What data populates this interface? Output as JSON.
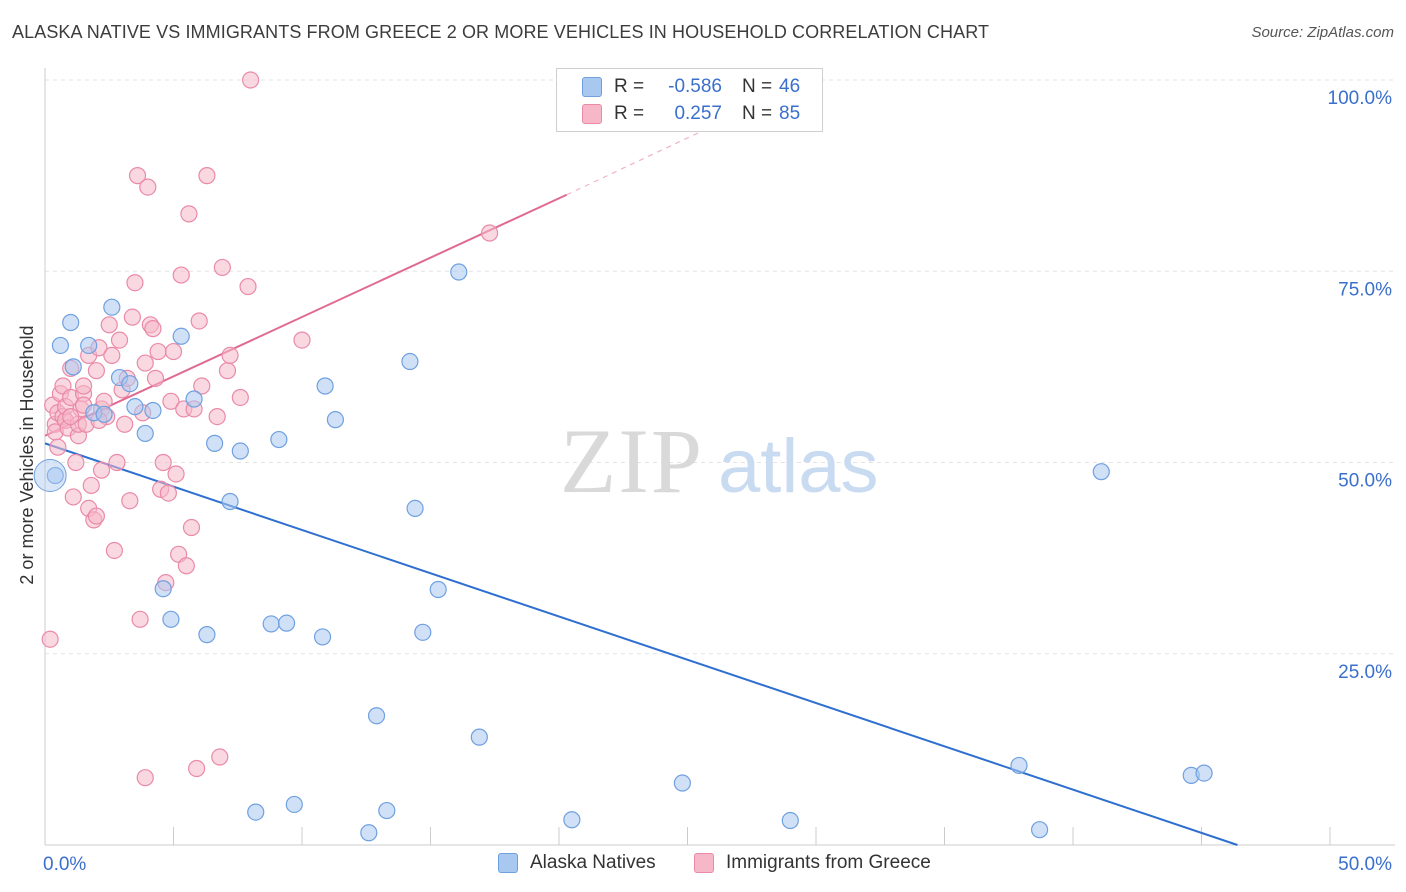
{
  "title": "ALASKA NATIVE VS IMMIGRANTS FROM GREECE 2 OR MORE VEHICLES IN HOUSEHOLD CORRELATION CHART",
  "source": "Source: ZipAtlas.com",
  "watermark": {
    "zip": "ZIP",
    "atlas": "atlas"
  },
  "legend": {
    "rows": [
      {
        "r_label": "R =",
        "r_value": "-0.586",
        "n_label": "N =",
        "n_value": "46"
      },
      {
        "r_label": "R =",
        "r_value": "0.257",
        "n_label": "N =",
        "n_value": "85"
      }
    ]
  },
  "bottom_legend": {
    "series_a": "Alaska Natives",
    "series_b": "Immigrants from Greece"
  },
  "colors": {
    "blue_fill": "#a9c8f0",
    "blue_stroke": "#6fa0e0",
    "blue_line": "#2f6fd0",
    "pink_fill": "#f6b8c9",
    "pink_stroke": "#ea8aa8",
    "pink_line": "#e06a92",
    "axis_text": "#3a6fcc",
    "grid": "#e3e3e3"
  },
  "chart_data": {
    "type": "scatter",
    "title": "ALASKA NATIVE VS IMMIGRANTS FROM GREECE 2 OR MORE VEHICLES IN HOUSEHOLD CORRELATION CHART",
    "xlabel": "",
    "ylabel": "2 or more Vehicles in Household",
    "xlim": [
      0,
      50
    ],
    "ylim": [
      0,
      100
    ],
    "x_tick_labels": [
      "0.0%",
      "50.0%"
    ],
    "y_ticks": [
      25,
      50,
      75,
      100
    ],
    "y_tick_labels": [
      "25.0%",
      "50.0%",
      "75.0%",
      "100.0%"
    ],
    "series": [
      {
        "name": "Alaska Natives",
        "color": "blue",
        "points": [
          [
            0.4,
            48.3
          ],
          [
            0.6,
            65.3
          ],
          [
            1.0,
            68.3
          ],
          [
            1.1,
            62.5
          ],
          [
            1.7,
            65.3
          ],
          [
            1.9,
            56.5
          ],
          [
            2.3,
            56.3
          ],
          [
            2.6,
            70.3
          ],
          [
            2.9,
            61.1
          ],
          [
            3.3,
            60.3
          ],
          [
            3.5,
            57.3
          ],
          [
            3.9,
            53.8
          ],
          [
            4.2,
            56.8
          ],
          [
            4.6,
            33.5
          ],
          [
            4.9,
            29.5
          ],
          [
            5.3,
            66.5
          ],
          [
            5.8,
            58.3
          ],
          [
            6.3,
            27.5
          ],
          [
            6.6,
            52.5
          ],
          [
            7.2,
            44.9
          ],
          [
            7.6,
            51.5
          ],
          [
            8.2,
            4.3
          ],
          [
            8.8,
            28.9
          ],
          [
            9.1,
            53.0
          ],
          [
            9.4,
            29.0
          ],
          [
            9.7,
            5.3
          ],
          [
            10.8,
            27.2
          ],
          [
            10.9,
            60.0
          ],
          [
            11.3,
            55.6
          ],
          [
            12.6,
            1.6
          ],
          [
            12.9,
            16.9
          ],
          [
            13.3,
            4.5
          ],
          [
            14.2,
            63.2
          ],
          [
            14.4,
            44.0
          ],
          [
            14.7,
            27.8
          ],
          [
            15.3,
            33.4
          ],
          [
            16.1,
            74.9
          ],
          [
            16.9,
            14.1
          ],
          [
            20.5,
            3.3
          ],
          [
            24.8,
            8.1
          ],
          [
            29.0,
            3.2
          ],
          [
            37.9,
            10.4
          ],
          [
            38.7,
            2.0
          ],
          [
            41.1,
            48.8
          ],
          [
            44.6,
            9.1
          ],
          [
            45.1,
            9.4
          ]
        ]
      },
      {
        "name": "Immigrants from Greece",
        "color": "pink",
        "points": [
          [
            0.2,
            26.9
          ],
          [
            0.3,
            57.5
          ],
          [
            0.4,
            55.0
          ],
          [
            0.4,
            54.0
          ],
          [
            0.5,
            52.0
          ],
          [
            0.5,
            56.5
          ],
          [
            0.6,
            59.0
          ],
          [
            0.7,
            60.0
          ],
          [
            0.7,
            56.0
          ],
          [
            0.8,
            55.5
          ],
          [
            0.8,
            57.3
          ],
          [
            0.9,
            54.5
          ],
          [
            1.0,
            58.5
          ],
          [
            1.0,
            62.3
          ],
          [
            1.1,
            45.5
          ],
          [
            1.2,
            50.0
          ],
          [
            1.3,
            53.5
          ],
          [
            1.3,
            55.0
          ],
          [
            1.4,
            57.0
          ],
          [
            1.5,
            59.0
          ],
          [
            1.5,
            60.0
          ],
          [
            1.6,
            55.0
          ],
          [
            1.7,
            44.0
          ],
          [
            1.7,
            64.0
          ],
          [
            1.8,
            47.0
          ],
          [
            1.9,
            42.5
          ],
          [
            2.0,
            43.0
          ],
          [
            2.0,
            62.0
          ],
          [
            2.1,
            65.0
          ],
          [
            2.2,
            49.0
          ],
          [
            2.2,
            57.0
          ],
          [
            2.3,
            58.0
          ],
          [
            2.4,
            56.0
          ],
          [
            2.5,
            68.0
          ],
          [
            2.6,
            64.0
          ],
          [
            2.7,
            38.5
          ],
          [
            2.8,
            50.0
          ],
          [
            2.9,
            66.0
          ],
          [
            3.0,
            59.5
          ],
          [
            3.1,
            55.0
          ],
          [
            3.2,
            61.0
          ],
          [
            3.3,
            45.0
          ],
          [
            3.4,
            69.0
          ],
          [
            3.5,
            73.5
          ],
          [
            3.6,
            87.5
          ],
          [
            3.7,
            29.5
          ],
          [
            3.8,
            56.5
          ],
          [
            3.9,
            63.0
          ],
          [
            4.0,
            86.0
          ],
          [
            4.1,
            68.0
          ],
          [
            4.2,
            67.5
          ],
          [
            4.3,
            61.0
          ],
          [
            4.4,
            64.5
          ],
          [
            4.5,
            46.5
          ],
          [
            4.6,
            50.0
          ],
          [
            4.7,
            34.3
          ],
          [
            4.8,
            46.0
          ],
          [
            4.9,
            58.0
          ],
          [
            5.0,
            64.5
          ],
          [
            5.1,
            48.5
          ],
          [
            5.2,
            38.0
          ],
          [
            5.3,
            74.5
          ],
          [
            5.4,
            57.0
          ],
          [
            5.5,
            36.5
          ],
          [
            5.6,
            82.5
          ],
          [
            5.7,
            41.5
          ],
          [
            5.8,
            57.0
          ],
          [
            5.9,
            10.0
          ],
          [
            6.0,
            68.5
          ],
          [
            6.1,
            60.0
          ],
          [
            6.3,
            87.5
          ],
          [
            6.7,
            56.0
          ],
          [
            6.8,
            11.5
          ],
          [
            6.9,
            75.5
          ],
          [
            7.1,
            62.0
          ],
          [
            7.2,
            64.0
          ],
          [
            7.6,
            58.5
          ],
          [
            7.9,
            73.0
          ],
          [
            8.0,
            100.0
          ],
          [
            10.0,
            66.0
          ],
          [
            17.3,
            80.0
          ],
          [
            3.9,
            8.8
          ],
          [
            1.0,
            56.0
          ],
          [
            2.1,
            55.5
          ],
          [
            1.5,
            57.5
          ]
        ]
      }
    ],
    "trendlines": [
      {
        "series": "Alaska Natives",
        "x": [
          0,
          46.4
        ],
        "y": [
          52.5,
          0
        ]
      },
      {
        "series": "Immigrants from Greece",
        "x_solid": [
          0,
          20.3
        ],
        "y_solid": [
          53.5,
          85.0
        ],
        "x_dashed": [
          20.3,
          26.0
        ],
        "y_dashed": [
          85.0,
          94.0
        ]
      }
    ]
  }
}
